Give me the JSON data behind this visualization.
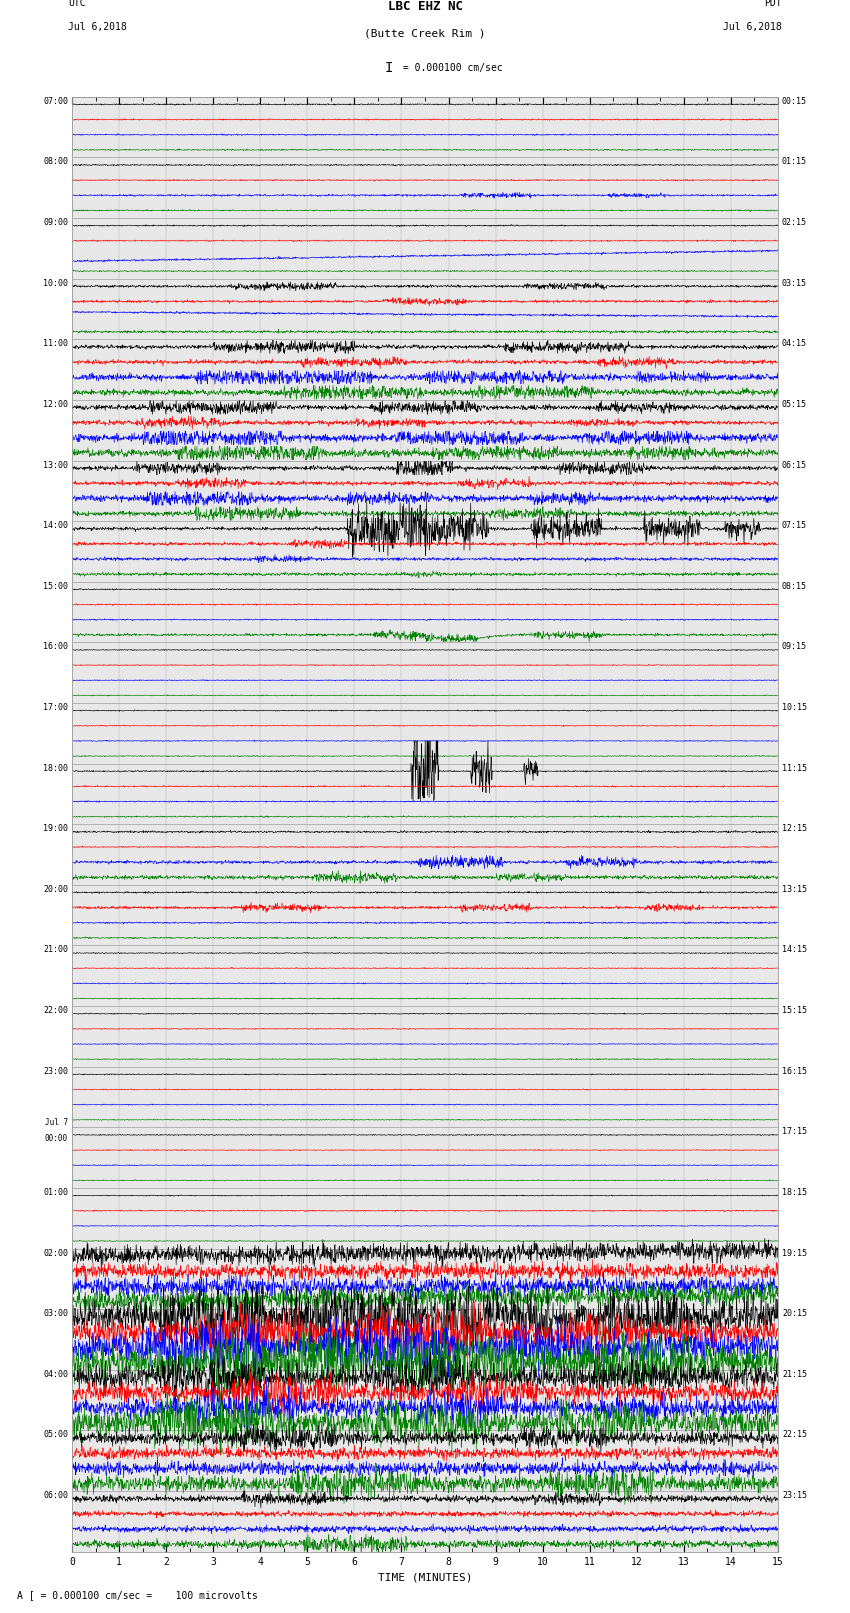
{
  "title_line1": "LBC EHZ NC",
  "title_line2": "(Butte Creek Rim )",
  "scale_text": "I = 0.000100 cm/sec",
  "bottom_note": "A [ = 0.000100 cm/sec =    100 microvolts",
  "utc_label": "UTC\nJul 6,2018",
  "pdt_label": "PDT\nJul 6,2018",
  "xlabel": "TIME (MINUTES)",
  "left_times": [
    "07:00",
    "08:00",
    "09:00",
    "10:00",
    "11:00",
    "12:00",
    "13:00",
    "14:00",
    "15:00",
    "16:00",
    "17:00",
    "18:00",
    "19:00",
    "20:00",
    "21:00",
    "22:00",
    "23:00",
    "Jul 7\n00:00",
    "01:00",
    "02:00",
    "03:00",
    "04:00",
    "05:00",
    "06:00"
  ],
  "right_times": [
    "00:15",
    "01:15",
    "02:15",
    "03:15",
    "04:15",
    "05:15",
    "06:15",
    "07:15",
    "08:15",
    "09:15",
    "10:15",
    "11:15",
    "12:15",
    "13:15",
    "14:15",
    "15:15",
    "16:15",
    "17:15",
    "18:15",
    "19:15",
    "20:15",
    "21:15",
    "22:15",
    "23:15"
  ],
  "n_rows": 24,
  "n_channels": 4,
  "n_pts": 1800,
  "bg_color": "#e8e8e8",
  "grid_color": "#999999",
  "colors": [
    "black",
    "red",
    "blue",
    "green"
  ],
  "line_width": 0.45,
  "fig_width": 8.5,
  "fig_height": 16.13
}
